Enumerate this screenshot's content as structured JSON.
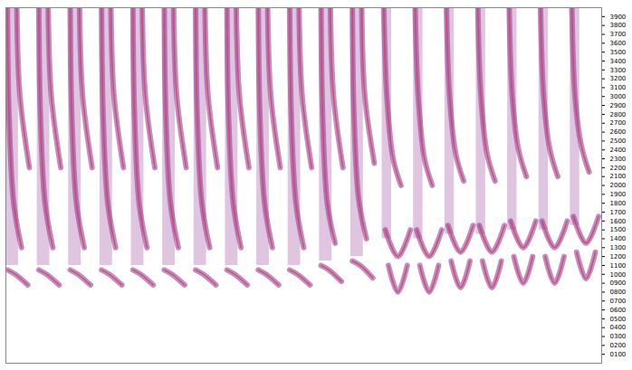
{
  "chart_data": {
    "type": "seismic",
    "xlim": [
      0,
      19
    ],
    "ylim": [
      0,
      4000
    ],
    "yticks": [
      {
        "value": 100,
        "label": "0100"
      },
      {
        "value": 200,
        "label": "0200"
      },
      {
        "value": 300,
        "label": "0300"
      },
      {
        "value": 400,
        "label": "0400"
      },
      {
        "value": 500,
        "label": "0500"
      },
      {
        "value": 600,
        "label": "0600"
      },
      {
        "value": 700,
        "label": "0700"
      },
      {
        "value": 800,
        "label": "0800"
      },
      {
        "value": 900,
        "label": "0900"
      },
      1000,
      1100,
      1200,
      1300,
      1400,
      1500,
      1600,
      1700,
      1800,
      1900,
      2000,
      2100,
      2200,
      2300,
      2400,
      2500,
      2600,
      2700,
      2800,
      2900,
      3000,
      3100,
      3200,
      3300,
      3400,
      3500,
      3600,
      3700,
      3800,
      3900
    ],
    "tick_labels": "y",
    "color": "#8e2f95",
    "gathers": [
      {
        "band": {
          "x": [
            0,
            0.4
          ],
          "y": [
            1100,
            4000
          ]
        },
        "events": [
          [
            [
              0.05,
              4000
            ],
            [
              0.1,
              2800
            ],
            [
              0.25,
              1800
            ],
            [
              0.5,
              1300
            ]
          ],
          [
            [
              0.05,
              1050
            ],
            [
              0.3,
              1000
            ],
            [
              0.7,
              880
            ]
          ],
          [
            [
              0.35,
              4000
            ],
            [
              0.45,
              3000
            ],
            [
              0.75,
              2200
            ]
          ]
        ]
      },
      {
        "band": {
          "x": [
            1,
            1.4
          ],
          "y": [
            1100,
            4000
          ]
        },
        "events": [
          [
            [
              1.05,
              4000
            ],
            [
              1.1,
              2800
            ],
            [
              1.25,
              1800
            ],
            [
              1.5,
              1300
            ]
          ],
          [
            [
              1.05,
              1050
            ],
            [
              1.3,
              1000
            ],
            [
              1.7,
              880
            ]
          ],
          [
            [
              1.35,
              4000
            ],
            [
              1.45,
              3000
            ],
            [
              1.75,
              2200
            ]
          ]
        ]
      },
      {
        "band": {
          "x": [
            2,
            2.4
          ],
          "y": [
            1100,
            4000
          ]
        },
        "events": [
          [
            [
              2.05,
              4000
            ],
            [
              2.1,
              2800
            ],
            [
              2.25,
              1800
            ],
            [
              2.5,
              1300
            ]
          ],
          [
            [
              2.05,
              1050
            ],
            [
              2.3,
              1000
            ],
            [
              2.7,
              880
            ]
          ],
          [
            [
              2.35,
              4000
            ],
            [
              2.45,
              3000
            ],
            [
              2.75,
              2200
            ]
          ]
        ]
      },
      {
        "band": {
          "x": [
            3,
            3.4
          ],
          "y": [
            1100,
            4000
          ]
        },
        "events": [
          [
            [
              3.05,
              4000
            ],
            [
              3.1,
              2800
            ],
            [
              3.25,
              1800
            ],
            [
              3.5,
              1300
            ]
          ],
          [
            [
              3.05,
              1050
            ],
            [
              3.3,
              1000
            ],
            [
              3.7,
              880
            ]
          ],
          [
            [
              3.35,
              4000
            ],
            [
              3.45,
              3000
            ],
            [
              3.75,
              2200
            ]
          ]
        ]
      },
      {
        "band": {
          "x": [
            4,
            4.4
          ],
          "y": [
            1100,
            4000
          ]
        },
        "events": [
          [
            [
              4.05,
              4000
            ],
            [
              4.1,
              2800
            ],
            [
              4.25,
              1800
            ],
            [
              4.5,
              1300
            ]
          ],
          [
            [
              4.05,
              1050
            ],
            [
              4.3,
              1000
            ],
            [
              4.7,
              880
            ]
          ],
          [
            [
              4.35,
              4000
            ],
            [
              4.45,
              3000
            ],
            [
              4.75,
              2200
            ]
          ]
        ]
      },
      {
        "band": {
          "x": [
            5,
            5.4
          ],
          "y": [
            1100,
            4000
          ]
        },
        "events": [
          [
            [
              5.05,
              4000
            ],
            [
              5.1,
              2800
            ],
            [
              5.25,
              1800
            ],
            [
              5.5,
              1300
            ]
          ],
          [
            [
              5.05,
              1050
            ],
            [
              5.3,
              1000
            ],
            [
              5.7,
              880
            ]
          ],
          [
            [
              5.35,
              4000
            ],
            [
              5.45,
              3000
            ],
            [
              5.75,
              2200
            ]
          ]
        ]
      },
      {
        "band": {
          "x": [
            6,
            6.4
          ],
          "y": [
            1100,
            4000
          ]
        },
        "events": [
          [
            [
              6.05,
              4000
            ],
            [
              6.1,
              2800
            ],
            [
              6.25,
              1800
            ],
            [
              6.5,
              1300
            ]
          ],
          [
            [
              6.05,
              1050
            ],
            [
              6.3,
              1000
            ],
            [
              6.7,
              880
            ]
          ],
          [
            [
              6.35,
              4000
            ],
            [
              6.45,
              3000
            ],
            [
              6.75,
              2200
            ]
          ]
        ]
      },
      {
        "band": {
          "x": [
            7,
            7.4
          ],
          "y": [
            1100,
            4000
          ]
        },
        "events": [
          [
            [
              7.05,
              4000
            ],
            [
              7.1,
              2800
            ],
            [
              7.25,
              1800
            ],
            [
              7.5,
              1300
            ]
          ],
          [
            [
              7.05,
              1050
            ],
            [
              7.3,
              1000
            ],
            [
              7.7,
              880
            ]
          ],
          [
            [
              7.35,
              4000
            ],
            [
              7.45,
              3000
            ],
            [
              7.75,
              2200
            ]
          ]
        ]
      },
      {
        "band": {
          "x": [
            8,
            8.4
          ],
          "y": [
            1100,
            4000
          ]
        },
        "events": [
          [
            [
              8.05,
              4000
            ],
            [
              8.1,
              2800
            ],
            [
              8.25,
              1800
            ],
            [
              8.5,
              1300
            ]
          ],
          [
            [
              8.05,
              1050
            ],
            [
              8.3,
              1000
            ],
            [
              8.7,
              880
            ]
          ],
          [
            [
              8.35,
              4000
            ],
            [
              8.45,
              3000
            ],
            [
              8.75,
              2200
            ]
          ]
        ]
      },
      {
        "band": {
          "x": [
            9,
            9.4
          ],
          "y": [
            1100,
            4000
          ]
        },
        "events": [
          [
            [
              9.05,
              4000
            ],
            [
              9.1,
              2800
            ],
            [
              9.25,
              1800
            ],
            [
              9.5,
              1300
            ]
          ],
          [
            [
              9.05,
              1050
            ],
            [
              9.3,
              1000
            ],
            [
              9.7,
              880
            ]
          ],
          [
            [
              9.35,
              4000
            ],
            [
              9.45,
              3000
            ],
            [
              9.75,
              2200
            ]
          ]
        ]
      },
      {
        "band": {
          "x": [
            10,
            10.4
          ],
          "y": [
            1150,
            4000
          ]
        },
        "events": [
          [
            [
              10.05,
              4000
            ],
            [
              10.1,
              2800
            ],
            [
              10.25,
              1800
            ],
            [
              10.5,
              1350
            ]
          ],
          [
            [
              10.05,
              1100
            ],
            [
              10.3,
              1050
            ],
            [
              10.7,
              920
            ]
          ],
          [
            [
              10.35,
              4000
            ],
            [
              10.45,
              3000
            ],
            [
              10.75,
              2200
            ]
          ]
        ]
      },
      {
        "band": {
          "x": [
            11,
            11.4
          ],
          "y": [
            1200,
            4000
          ]
        },
        "events": [
          [
            [
              11.05,
              4000
            ],
            [
              11.1,
              2800
            ],
            [
              11.25,
              1850
            ],
            [
              11.5,
              1400
            ]
          ],
          [
            [
              11.05,
              1150
            ],
            [
              11.3,
              1100
            ],
            [
              11.7,
              960
            ]
          ],
          [
            [
              11.35,
              4000
            ],
            [
              11.45,
              3000
            ],
            [
              11.75,
              2250
            ]
          ]
        ]
      },
      {
        "band": {
          "x": [
            12,
            12.3
          ],
          "y": [
            1400,
            4000
          ]
        },
        "events": [
          [
            [
              12.05,
              4000
            ],
            [
              12.15,
              3000
            ],
            [
              12.35,
              2300
            ],
            [
              12.6,
              2000
            ]
          ],
          [
            [
              12.1,
              1500
            ],
            [
              12.5,
              1200
            ],
            [
              12.9,
              1500
            ]
          ],
          [
            [
              12.2,
              1100
            ],
            [
              12.5,
              800
            ],
            [
              12.8,
              1100
            ]
          ]
        ]
      },
      {
        "band": {
          "x": [
            13,
            13.3
          ],
          "y": [
            1400,
            4000
          ]
        },
        "events": [
          [
            [
              13.05,
              4000
            ],
            [
              13.15,
              3000
            ],
            [
              13.35,
              2300
            ],
            [
              13.6,
              2000
            ]
          ],
          [
            [
              13.1,
              1500
            ],
            [
              13.5,
              1200
            ],
            [
              13.9,
              1500
            ]
          ],
          [
            [
              13.2,
              1100
            ],
            [
              13.5,
              800
            ],
            [
              13.8,
              1100
            ]
          ]
        ]
      },
      {
        "band": {
          "x": [
            14,
            14.3
          ],
          "y": [
            1450,
            4000
          ]
        },
        "events": [
          [
            [
              14.05,
              4000
            ],
            [
              14.15,
              3000
            ],
            [
              14.35,
              2350
            ],
            [
              14.6,
              2050
            ]
          ],
          [
            [
              14.1,
              1550
            ],
            [
              14.5,
              1250
            ],
            [
              14.9,
              1550
            ]
          ],
          [
            [
              14.2,
              1150
            ],
            [
              14.5,
              850
            ],
            [
              14.8,
              1150
            ]
          ]
        ]
      },
      {
        "band": {
          "x": [
            15,
            15.3
          ],
          "y": [
            1450,
            4000
          ]
        },
        "events": [
          [
            [
              15.05,
              4000
            ],
            [
              15.15,
              3000
            ],
            [
              15.35,
              2350
            ],
            [
              15.6,
              2050
            ]
          ],
          [
            [
              15.1,
              1550
            ],
            [
              15.5,
              1250
            ],
            [
              15.9,
              1550
            ]
          ],
          [
            [
              15.2,
              1150
            ],
            [
              15.5,
              850
            ],
            [
              15.8,
              1150
            ]
          ]
        ]
      },
      {
        "band": {
          "x": [
            16,
            16.3
          ],
          "y": [
            1500,
            4000
          ]
        },
        "events": [
          [
            [
              16.05,
              4000
            ],
            [
              16.15,
              3000
            ],
            [
              16.35,
              2400
            ],
            [
              16.6,
              2100
            ]
          ],
          [
            [
              16.1,
              1600
            ],
            [
              16.5,
              1300
            ],
            [
              16.9,
              1600
            ]
          ],
          [
            [
              16.2,
              1200
            ],
            [
              16.5,
              900
            ],
            [
              16.8,
              1200
            ]
          ]
        ]
      },
      {
        "band": {
          "x": [
            17,
            17.3
          ],
          "y": [
            1500,
            4000
          ]
        },
        "events": [
          [
            [
              17.05,
              4000
            ],
            [
              17.15,
              3000
            ],
            [
              17.35,
              2400
            ],
            [
              17.6,
              2100
            ]
          ],
          [
            [
              17.1,
              1600
            ],
            [
              17.5,
              1300
            ],
            [
              17.9,
              1600
            ]
          ],
          [
            [
              17.2,
              1200
            ],
            [
              17.5,
              900
            ],
            [
              17.8,
              1200
            ]
          ]
        ]
      },
      {
        "band": {
          "x": [
            18,
            18.3
          ],
          "y": [
            1550,
            4000
          ]
        },
        "events": [
          [
            [
              18.05,
              4000
            ],
            [
              18.15,
              3000
            ],
            [
              18.35,
              2450
            ],
            [
              18.6,
              2150
            ]
          ],
          [
            [
              18.1,
              1650
            ],
            [
              18.5,
              1350
            ],
            [
              18.9,
              1650
            ]
          ],
          [
            [
              18.2,
              1250
            ],
            [
              18.5,
              950
            ],
            [
              18.8,
              1250
            ]
          ]
        ]
      }
    ]
  }
}
